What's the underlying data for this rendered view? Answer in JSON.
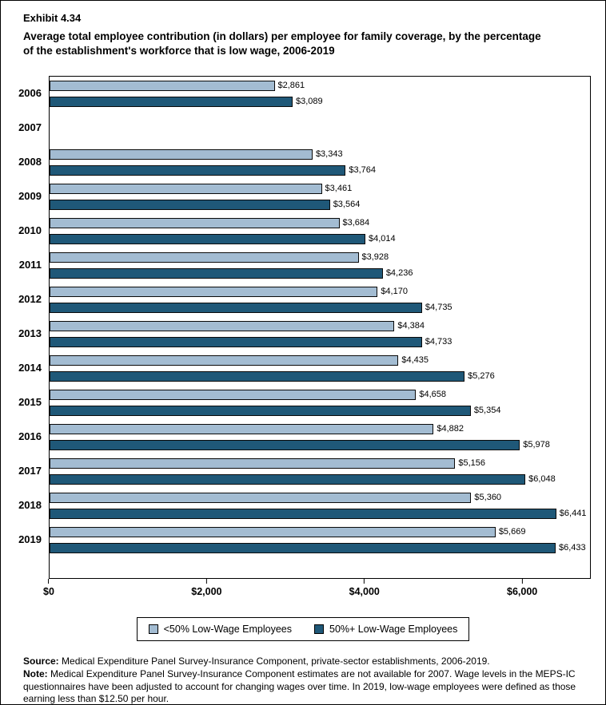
{
  "header": {
    "exhibit": "Exhibit 4.34",
    "title": "Average total employee contribution (in dollars) per employee for family coverage, by the percentage of the establishment's workforce that is low wage, 2006-2019"
  },
  "chart_data": {
    "type": "bar",
    "orientation": "horizontal",
    "title": "Average total employee contribution (in dollars) per employee for family coverage, by the percentage of the establishment's workforce that is low wage, 2006-2019",
    "categories": [
      "2006",
      "2007",
      "2008",
      "2009",
      "2010",
      "2011",
      "2012",
      "2013",
      "2014",
      "2015",
      "2016",
      "2017",
      "2018",
      "2019"
    ],
    "series": [
      {
        "name": "<50% Low-Wage Employees",
        "color": "#A3BCD2",
        "values": [
          2861,
          null,
          3343,
          3461,
          3684,
          3928,
          4170,
          4384,
          4435,
          4658,
          4882,
          5156,
          5360,
          5669
        ],
        "labels": [
          "$2,861",
          "",
          "$3,343",
          "$3,461",
          "$3,684",
          "$3,928",
          "$4,170",
          "$4,384",
          "$4,435",
          "$4,658",
          "$4,882",
          "$5,156",
          "$5,360",
          "$5,669"
        ]
      },
      {
        "name": "50%+ Low-Wage Employees",
        "color": "#1F5878",
        "values": [
          3089,
          null,
          3764,
          3564,
          4014,
          4236,
          4735,
          4733,
          5276,
          5354,
          5978,
          6048,
          6441,
          6433
        ],
        "labels": [
          "$3,089",
          "",
          "$3,764",
          "$3,564",
          "$4,014",
          "$4,236",
          "$4,735",
          "$4,733",
          "$5,276",
          "$5,354",
          "$5,978",
          "$6,048",
          "$6,441",
          "$6,433"
        ]
      }
    ],
    "x_ticks": [
      {
        "label": "$0",
        "value": 0
      },
      {
        "label": "$2,000",
        "value": 2000
      },
      {
        "label": "$4,000",
        "value": 4000
      },
      {
        "label": "$6,000",
        "value": 6000
      }
    ],
    "xlim": [
      0,
      6870
    ],
    "xlabel": "",
    "ylabel": "",
    "grid": false,
    "legend_position": "bottom"
  },
  "footer": {
    "source_label": "Source:",
    "source_text": " Medical Expenditure Panel Survey-Insurance Component, private-sector establishments, 2006-2019.",
    "note_label": "Note:",
    "note_text": " Medical Expenditure Panel Survey-Insurance Component estimates are not available for 2007. Wage levels in the MEPS-IC questionnaires have been adjusted to account for changing wages over time. In 2019, low-wage employees were defined as those earning less than $12.50 per hour."
  }
}
